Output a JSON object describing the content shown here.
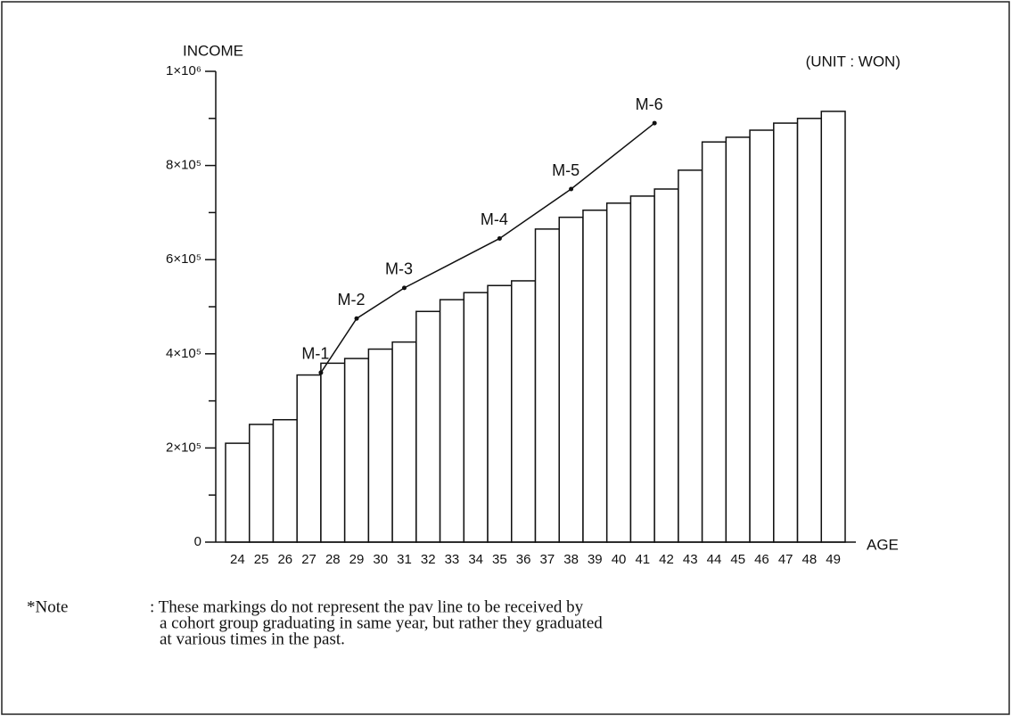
{
  "chart_data": {
    "type": "bar",
    "y_label": "INCOME",
    "unit_label": "(UNIT : WON)",
    "x_label": "AGE",
    "categories": [
      "24",
      "25",
      "26",
      "27",
      "28",
      "29",
      "30",
      "31",
      "32",
      "33",
      "34",
      "35",
      "36",
      "37",
      "38",
      "39",
      "40",
      "41",
      "42",
      "43",
      "44",
      "45",
      "46",
      "47",
      "48",
      "49"
    ],
    "values": [
      210000,
      250000,
      260000,
      355000,
      380000,
      390000,
      410000,
      425000,
      490000,
      515000,
      530000,
      545000,
      555000,
      665000,
      690000,
      705000,
      720000,
      735000,
      750000,
      790000,
      850000,
      860000,
      875000,
      890000,
      900000,
      915000
    ],
    "color": "#ffffff",
    "ylim": [
      0,
      1000000
    ],
    "yticks": [
      0,
      {
        "value": 200000,
        "label": "2×10⁵"
      },
      {
        "value": 400000,
        "label": "4×10⁵"
      },
      {
        "value": 600000,
        "label": "6×10⁵"
      },
      {
        "value": 800000,
        "label": "8×10⁵"
      },
      {
        "value": 1000000,
        "label": "1×10⁶"
      }
    ],
    "yminorticks": [
      100000,
      300000,
      500000,
      700000,
      900000
    ],
    "overlay": {
      "type": "line",
      "x": [
        27.5,
        29,
        31,
        35,
        38,
        41.5
      ],
      "values": [
        360000,
        475000,
        540000,
        645000,
        750000,
        890000
      ],
      "point_labels": [
        "M-1",
        "M-2",
        "M-3",
        "M-4",
        "M-5",
        "M-6"
      ]
    },
    "note_label": "*Note",
    "note_lines": [
      ": These markings do not represent the pav line to be received by",
      "a cohort group graduating in same year, but rather they graduated",
      "at various times in the past."
    ]
  }
}
